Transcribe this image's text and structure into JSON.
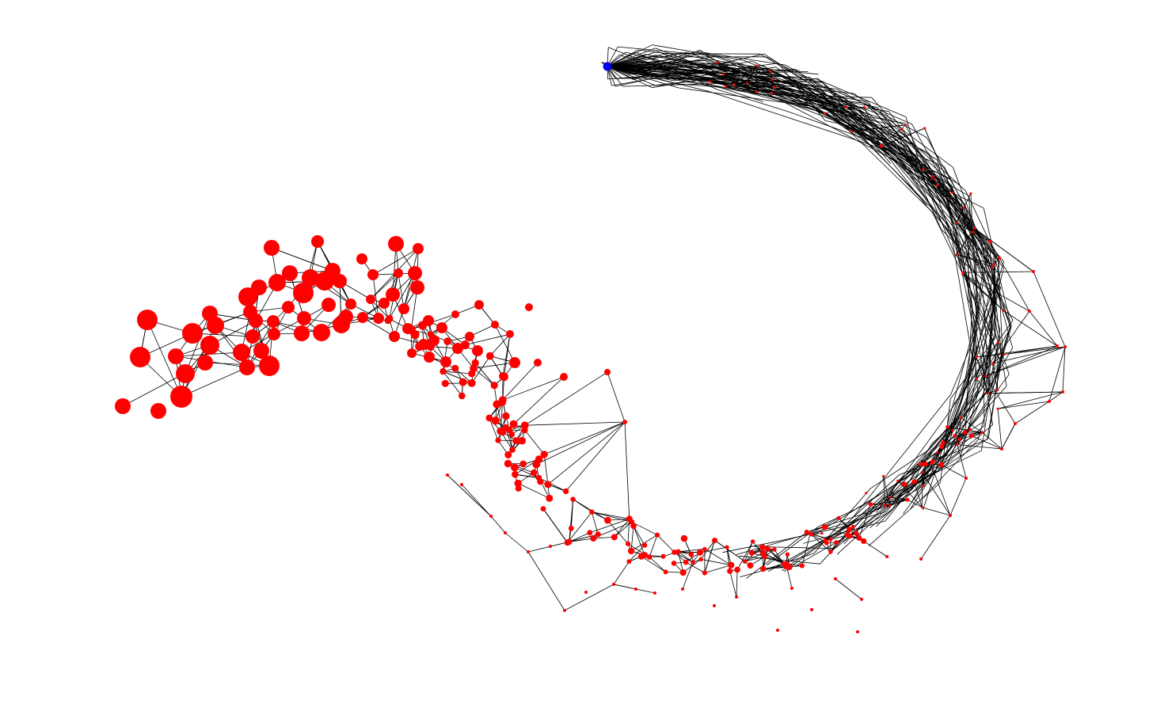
{
  "diagram": {
    "type": "network-graph",
    "title": "",
    "colors": {
      "background": "#ffffff",
      "edge": "#000000",
      "node_default": "#ff0000",
      "node_highlight": "#0000ee"
    },
    "legend": null,
    "labels_shown": false,
    "highlighted_node_count": 1,
    "description_of_encoding": ""
  }
}
